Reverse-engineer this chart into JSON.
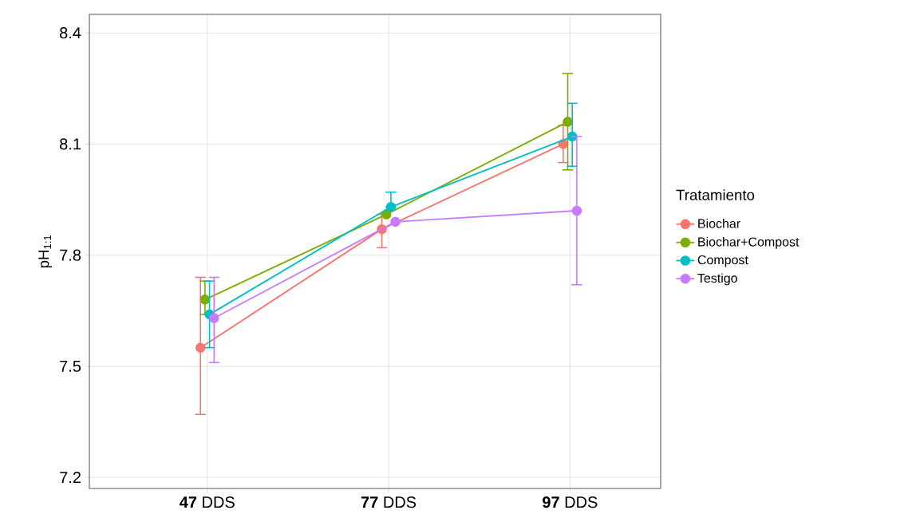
{
  "chart_data": {
    "type": "line",
    "ylabel": "pH$_{1:1}$",
    "legend_title": "Tratamiento",
    "categories": [
      "**47** DDS",
      "**77** DDS",
      "**97** DDS"
    ],
    "series": [
      {
        "name": "Biochar",
        "color": "#f8766d",
        "values": [
          7.55,
          7.87,
          8.1
        ],
        "errors": [
          [
            7.37,
            7.74
          ],
          [
            7.82,
            7.91
          ],
          [
            8.05,
            8.15
          ]
        ]
      },
      {
        "name": "Biochar+Compost",
        "color": "#7cae00",
        "values": [
          7.68,
          7.91,
          8.16
        ],
        "errors": [
          [
            7.64,
            7.73
          ],
          null,
          [
            8.03,
            8.29
          ]
        ]
      },
      {
        "name": "Compost",
        "color": "#00bfc4",
        "values": [
          7.64,
          7.93,
          8.12
        ],
        "errors": [
          [
            7.55,
            7.73
          ],
          [
            7.93,
            7.97
          ],
          [
            8.04,
            8.21
          ]
        ]
      },
      {
        "name": "Testigo",
        "color": "#c77cff",
        "values": [
          7.63,
          7.89,
          7.92
        ],
        "errors": [
          [
            7.51,
            7.74
          ],
          null,
          [
            7.72,
            8.12
          ]
        ]
      }
    ],
    "ylim": [
      7.17,
      8.45
    ],
    "yticks": [
      7.2,
      7.5,
      7.8,
      8.1,
      8.4
    ],
    "grid": true,
    "legend": "right",
    "marker": "circle",
    "line_style": "solid"
  }
}
